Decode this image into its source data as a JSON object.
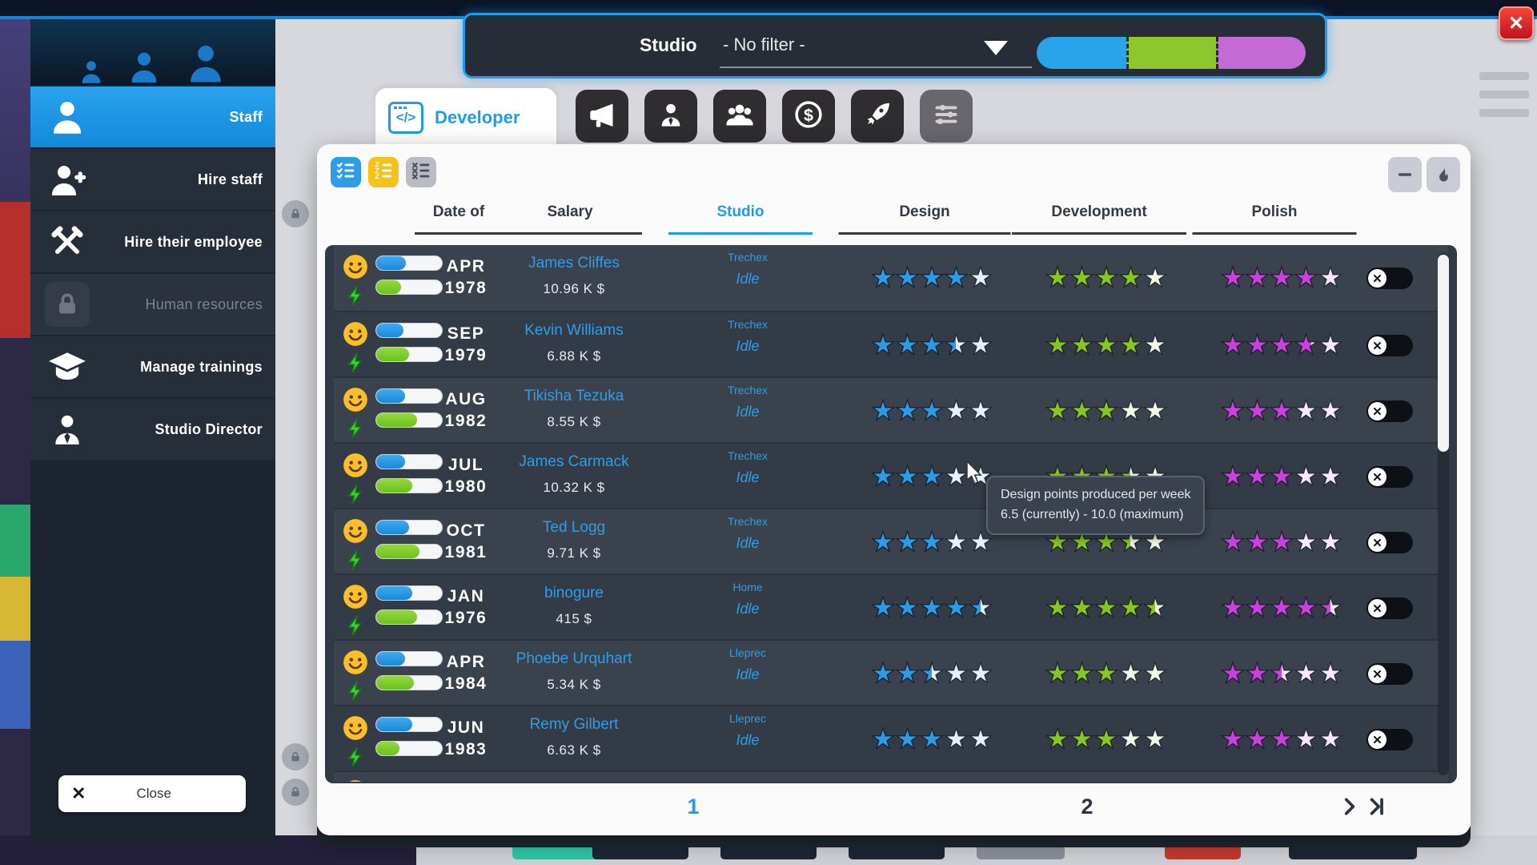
{
  "app": {
    "close_button": "✕"
  },
  "filter_bar": {
    "label": "Studio",
    "value": "- No filter -",
    "segment_colors": [
      "#29a3ea",
      "#8ec72c",
      "#c36ad4"
    ]
  },
  "sidebar": {
    "items": [
      {
        "label": "Staff",
        "icon": "person-icon",
        "state": "active"
      },
      {
        "label": "Hire staff",
        "icon": "person-add-icon",
        "state": "normal"
      },
      {
        "label": "Hire their employee",
        "icon": "crossed-tools-icon",
        "state": "normal"
      },
      {
        "label": "Human resources",
        "icon": "lock-icon",
        "state": "disabled"
      },
      {
        "label": "Manage trainings",
        "icon": "graduation-cap-icon",
        "state": "normal"
      },
      {
        "label": "Studio Director",
        "icon": "director-icon",
        "state": "normal"
      }
    ],
    "close_label": "Close"
  },
  "tabs": {
    "active_label": "Developer",
    "icon_tabs": [
      "megaphone",
      "manager",
      "team",
      "finance",
      "rocket",
      "settings"
    ]
  },
  "toolbar": {
    "view_toggles": [
      "checklist",
      "sleep-list",
      "cross-list"
    ],
    "actions": [
      "collapse",
      "fire"
    ]
  },
  "table": {
    "headers": [
      {
        "label": "Date of",
        "active": false
      },
      {
        "label": "Salary",
        "active": false
      },
      {
        "label": "Studio",
        "active": true
      },
      {
        "label": "Design",
        "active": false
      },
      {
        "label": "Development",
        "active": false
      },
      {
        "label": "Polish",
        "active": false
      }
    ],
    "star_colors": {
      "design": {
        "fill": "#2c9be8",
        "empty": "#e4f1fb"
      },
      "development": {
        "fill": "#87c71f",
        "empty": "#f3f8e7"
      },
      "polish": {
        "fill": "#cc3fe0",
        "empty": "#f9e9fb"
      }
    },
    "rows": [
      {
        "mood": 45,
        "energy": 38,
        "month": "APR",
        "year": "1978",
        "name": "James Cliffes",
        "salary": "10.96 K $",
        "studio": "Trechex",
        "status": "Idle",
        "design": 4,
        "development": 4,
        "polish": 4
      },
      {
        "mood": 42,
        "energy": 50,
        "month": "SEP",
        "year": "1979",
        "name": "Kevin Williams",
        "salary": "6.88 K $",
        "studio": "Trechex",
        "status": "Idle",
        "design": 3.5,
        "development": 3.8,
        "polish": 3.7
      },
      {
        "mood": 44,
        "energy": 62,
        "month": "AUG",
        "year": "1982",
        "name": "Tikisha Tezuka",
        "salary": "8.55 K $",
        "studio": "Trechex",
        "status": "Idle",
        "design": 3,
        "development": 3,
        "polish": 3
      },
      {
        "mood": 44,
        "energy": 55,
        "month": "JUL",
        "year": "1980",
        "name": "James Carmack",
        "salary": "10.32 K $",
        "studio": "Trechex",
        "status": "Idle",
        "design": 3,
        "development": 3.5,
        "polish": 3
      },
      {
        "mood": 50,
        "energy": 66,
        "month": "OCT",
        "year": "1981",
        "name": "Ted Logg",
        "salary": "9.71 K $",
        "studio": "Trechex",
        "status": "Idle",
        "design": 3,
        "development": 3.5,
        "polish": 3
      },
      {
        "mood": 55,
        "energy": 62,
        "month": "JAN",
        "year": "1976",
        "name": "binogure",
        "salary": "415 $",
        "studio": "Home",
        "status": "Idle",
        "design": 4.5,
        "development": 4.5,
        "polish": 4.5
      },
      {
        "mood": 44,
        "energy": 57,
        "month": "APR",
        "year": "1984",
        "name": "Phoebe Urquhart",
        "salary": "5.34 K $",
        "studio": "Lleprec",
        "status": "Idle",
        "design": 2.5,
        "development": 3,
        "polish": 2.5
      },
      {
        "mood": 55,
        "energy": 35,
        "month": "JUN",
        "year": "1983",
        "name": "Remy Gilbert",
        "salary": "6.63 K $",
        "studio": "Lleprec",
        "status": "Idle",
        "design": 3,
        "development": 3,
        "polish": 3
      }
    ]
  },
  "tooltip": {
    "line1": "Design points produced per week",
    "line2": "6.5 (currently) - 10.0 (maximum)"
  },
  "pagination": {
    "pages": [
      "1",
      "2"
    ],
    "current": "1"
  }
}
